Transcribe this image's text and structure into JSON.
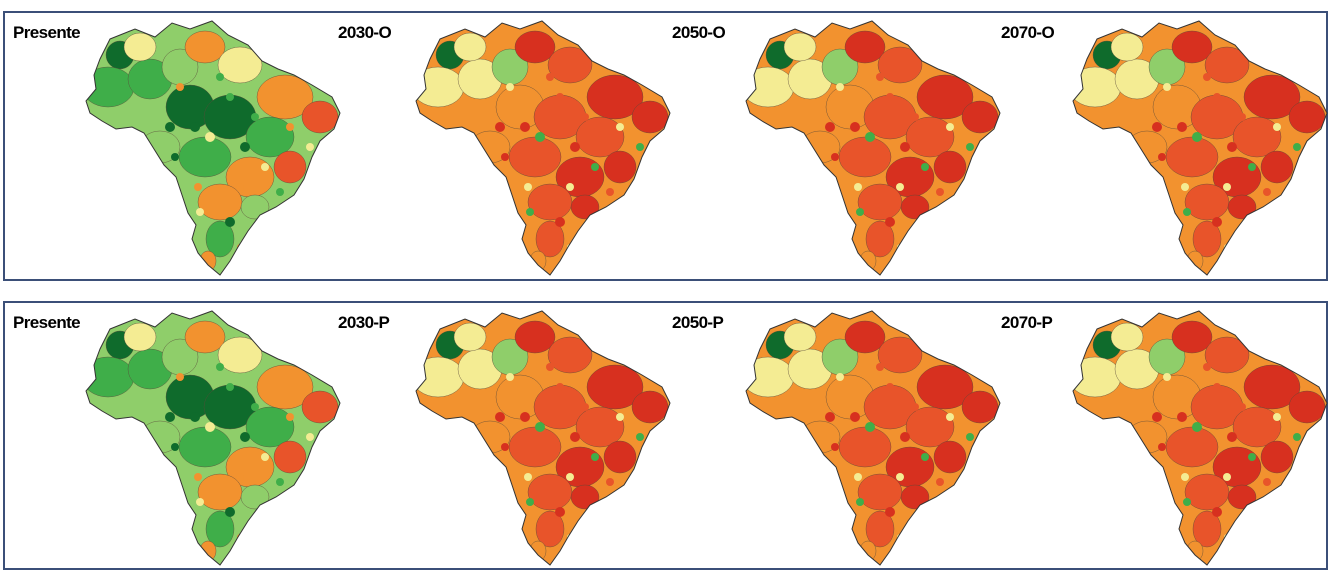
{
  "rows": [
    {
      "panels": [
        {
          "label": "Presente",
          "shading": "present"
        },
        {
          "label": "2030-O",
          "shading": "future"
        },
        {
          "label": "2050-O",
          "shading": "future"
        },
        {
          "label": "2070-O",
          "shading": "future"
        }
      ]
    },
    {
      "panels": [
        {
          "label": "Presente",
          "shading": "present"
        },
        {
          "label": "2030-P",
          "shading": "future"
        },
        {
          "label": "2050-P",
          "shading": "future"
        },
        {
          "label": "2070-P",
          "shading": "future"
        }
      ]
    }
  ],
  "colors": {
    "dark_green": "#0f6b2c",
    "green": "#3fae49",
    "light_green": "#8fce6a",
    "pale_yellow": "#f4ec93",
    "orange": "#f2922f",
    "red_orange": "#e8542a",
    "red": "#d7301f",
    "border": "#3b4f78"
  }
}
